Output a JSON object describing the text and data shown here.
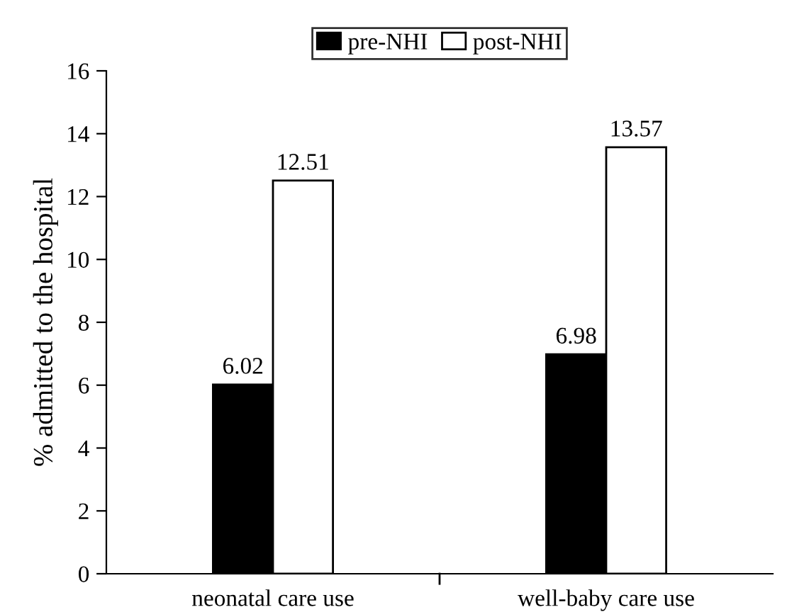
{
  "chart_data": {
    "type": "bar",
    "ylabel": "% admitted to the hospital",
    "categories": [
      "neonatal care use",
      "well-baby care use"
    ],
    "series": [
      {
        "name": "pre-NHI",
        "color": "#000000",
        "values": [
          6.02,
          6.98
        ]
      },
      {
        "name": "post-NHI",
        "color": "#ffffff",
        "values": [
          12.51,
          13.57
        ]
      }
    ],
    "ylim": [
      0,
      16
    ],
    "yticks": [
      0,
      2,
      4,
      6,
      8,
      10,
      12,
      14,
      16
    ],
    "data_labels": true,
    "legend": "top",
    "grid": false
  }
}
